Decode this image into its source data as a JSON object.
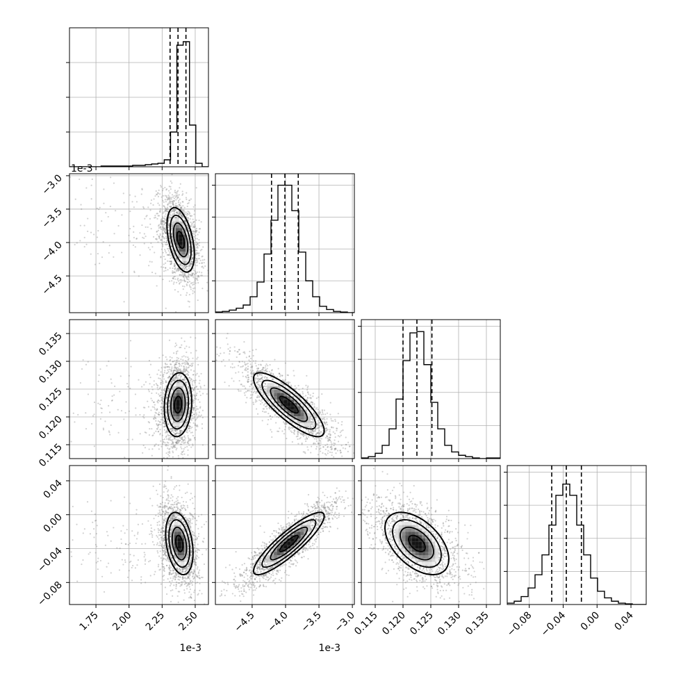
{
  "chart_data": {
    "type": "corner",
    "parameters": [
      {
        "axis_range": [
          0.00155,
          0.0026
        ],
        "ticks": [
          0.00175,
          0.002,
          0.00225,
          0.0025
        ],
        "tick_labels": [
          "1.75",
          "2.00",
          "2.25",
          "2.50"
        ],
        "offset_label": "1e-3",
        "quantiles": [
          0.00231,
          0.00237,
          0.00243
        ],
        "histogram": {
          "range": [
            0.00155,
            0.0026
          ],
          "counts": [
            0,
            0,
            0,
            0,
            0,
            1,
            1,
            1,
            1,
            1,
            2,
            2,
            3,
            4,
            5,
            10,
            50,
            175,
            180,
            60,
            5,
            0
          ],
          "ylim": [
            0,
            200
          ],
          "ygrid": [
            50,
            100,
            150
          ]
        }
      },
      {
        "axis_range": [
          -0.00505,
          -0.00297
        ],
        "ticks": [
          -0.0045,
          -0.004,
          -0.0035,
          -0.003
        ],
        "tick_labels": [
          "−4.5",
          "−4.0",
          "−3.5",
          "−3.0"
        ],
        "offset_label": "1e-3",
        "quantiles": [
          -0.00421,
          -0.00401,
          -0.00381
        ],
        "histogram": {
          "range": [
            -0.00505,
            -0.00297
          ],
          "counts": [
            1,
            2,
            4,
            7,
            12,
            25,
            48,
            92,
            145,
            200,
            200,
            160,
            95,
            50,
            25,
            10,
            5,
            2,
            1,
            0
          ],
          "ylim": [
            0,
            218
          ],
          "ygrid": [
            50,
            100,
            150,
            200
          ]
        }
      },
      {
        "axis_range": [
          0.1125,
          0.1375
        ],
        "ticks": [
          0.115,
          0.12,
          0.125,
          0.13,
          0.135
        ],
        "tick_labels": [
          "0.115",
          "0.120",
          "0.125",
          "0.130",
          "0.135"
        ],
        "offset_label": "",
        "quantiles": [
          0.12,
          0.1225,
          0.1252
        ],
        "histogram": {
          "range": [
            0.1125,
            0.1375
          ],
          "counts": [
            1,
            3,
            8,
            20,
            45,
            90,
            148,
            190,
            192,
            142,
            85,
            45,
            20,
            10,
            5,
            3,
            1,
            0,
            1,
            1
          ],
          "ylim": [
            0,
            210
          ],
          "ygrid": [
            50,
            100,
            150,
            200
          ]
        }
      },
      {
        "axis_range": [
          -0.106,
          0.058
        ],
        "ticks": [
          -0.08,
          -0.04,
          0.0,
          0.04
        ],
        "tick_labels": [
          "−0.08",
          "−0.04",
          "0.00",
          "0.04"
        ],
        "offset_label": "",
        "quantiles": [
          -0.0535,
          -0.0363,
          -0.0185
        ],
        "histogram": {
          "range": [
            -0.106,
            0.058
          ],
          "counts": [
            2,
            5,
            12,
            25,
            45,
            75,
            120,
            165,
            182,
            165,
            120,
            75,
            40,
            20,
            10,
            5,
            2,
            1,
            0,
            0
          ],
          "ylim": [
            0,
            210
          ],
          "ygrid": [
            50,
            100,
            150,
            200
          ]
        }
      }
    ],
    "pairs": [
      {
        "row": 1,
        "col": 0,
        "mean": [
          0.00239,
          -0.00396
        ],
        "sd": [
          4.5e-05,
          0.00021
        ],
        "rho": -0.45
      },
      {
        "row": 2,
        "col": 0,
        "mean": [
          0.00237,
          0.1222
        ],
        "sd": [
          4.5e-05,
          0.0025
        ],
        "rho": 0.1
      },
      {
        "row": 2,
        "col": 1,
        "mean": [
          -0.00395,
          0.1222
        ],
        "sd": [
          0.00023,
          0.0025
        ],
        "rho": -0.82
      },
      {
        "row": 3,
        "col": 0,
        "mean": [
          0.00238,
          -0.034
        ],
        "sd": [
          4.5e-05,
          0.016
        ],
        "rho": -0.3
      },
      {
        "row": 3,
        "col": 1,
        "mean": [
          -0.00395,
          -0.034
        ],
        "sd": [
          0.00023,
          0.016
        ],
        "rho": 0.88
      },
      {
        "row": 3,
        "col": 2,
        "mean": [
          0.1225,
          -0.034
        ],
        "sd": [
          0.0025,
          0.016
        ],
        "rho": -0.5
      }
    ],
    "grid": true,
    "scatter_color": "#7a7a7a",
    "contour_color": "#000000"
  }
}
